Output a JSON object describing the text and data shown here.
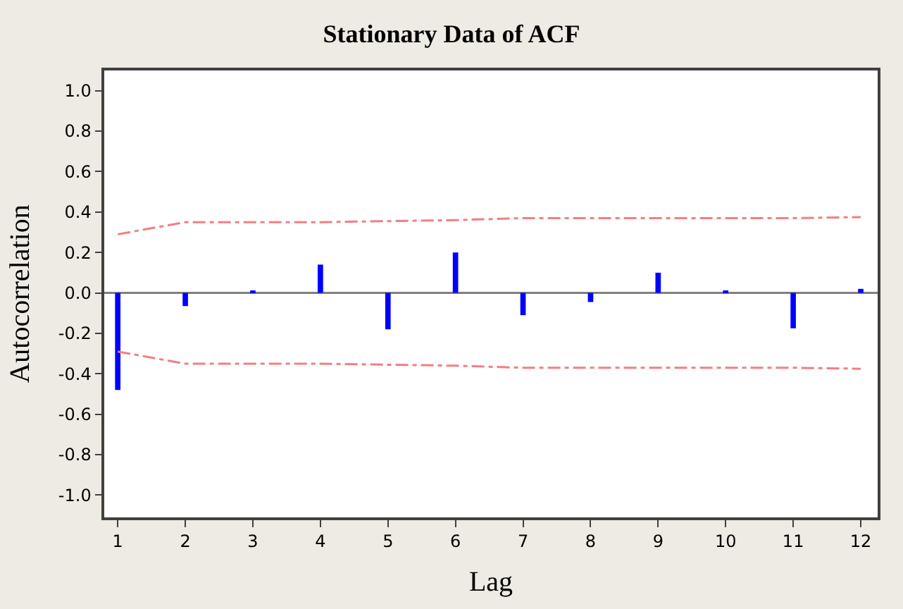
{
  "chart_data": {
    "type": "bar",
    "title": "Stationary Data of ACF",
    "xlabel": "Lag",
    "ylabel": "Autocorrelation",
    "x": [
      1,
      2,
      3,
      4,
      5,
      6,
      7,
      8,
      9,
      10,
      11,
      12
    ],
    "xlim": [
      0.8,
      12.25
    ],
    "xticks": [
      1,
      2,
      3,
      4,
      5,
      6,
      7,
      8,
      9,
      10,
      11,
      12
    ],
    "ylim": [
      -1.11,
      1.1
    ],
    "yticks": [
      {
        "value": 1.0,
        "label": "1.0"
      },
      0.8,
      0.6,
      0.4,
      0.2,
      {
        "value": 0.0,
        "label": "0.0"
      },
      -0.2,
      -0.4,
      -0.6,
      -0.8,
      {
        "value": -1.0,
        "label": "-1.0"
      }
    ],
    "grid": false,
    "ref_lines": [
      {
        "axis": "y",
        "value": 0,
        "color": "#808080",
        "line_style": "solid"
      }
    ],
    "series": [
      {
        "color": "#0000ff",
        "values": [
          -0.48,
          -0.065,
          0.01,
          0.14,
          -0.18,
          0.2,
          -0.11,
          -0.045,
          0.1,
          0.01,
          -0.175,
          0.02
        ]
      },
      {
        "type": "line",
        "color": "#f08080",
        "line_style": "dashdot",
        "values": [
          0.29,
          0.35,
          0.35,
          0.35,
          0.355,
          0.36,
          0.37,
          0.37,
          0.37,
          0.37,
          0.37,
          0.375
        ]
      },
      {
        "type": "line",
        "color": "#f08080",
        "line_style": "dashdot",
        "values": [
          -0.29,
          -0.35,
          -0.35,
          -0.35,
          -0.355,
          -0.36,
          -0.37,
          -0.37,
          -0.37,
          -0.37,
          -0.37,
          -0.375
        ]
      }
    ]
  }
}
